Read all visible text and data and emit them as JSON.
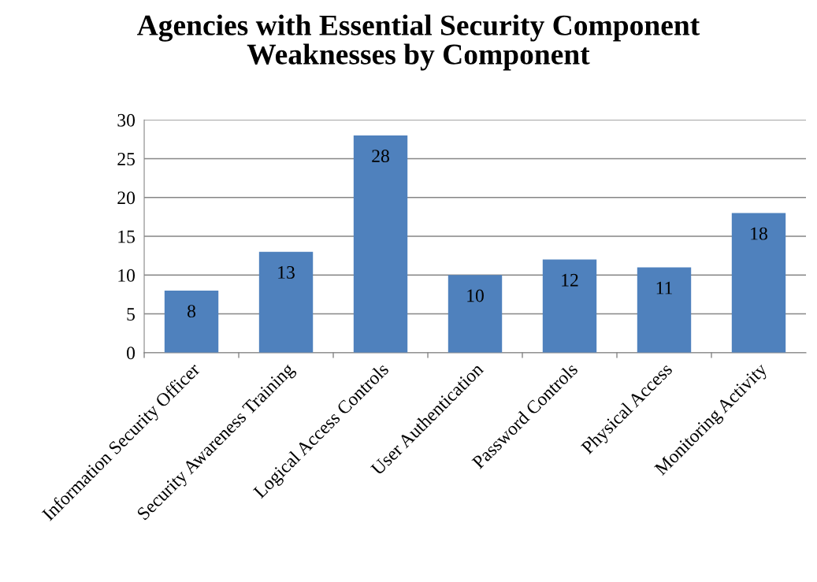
{
  "chart_data": {
    "type": "bar",
    "title": "Agencies with Essential Security Component\nWeaknesses by Component",
    "categories": [
      "Information Security Officer",
      "Security Awareness Training",
      "Logical Access Controls",
      "User Authentication",
      "Password Controls",
      "Physical Access",
      "Monitoring Activity"
    ],
    "values": [
      8,
      13,
      28,
      10,
      12,
      11,
      18
    ],
    "color": "#4f81bd",
    "ylim": [
      0,
      30
    ],
    "yticks": [
      0,
      5,
      10,
      15,
      20,
      25,
      30
    ],
    "grid": "y",
    "data_labels": true
  }
}
